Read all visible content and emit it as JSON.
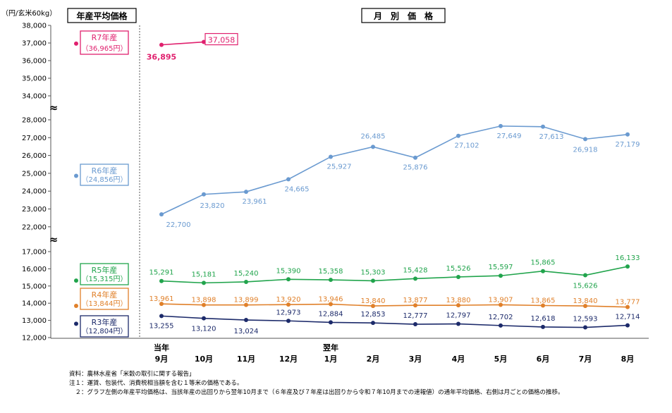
{
  "header": {
    "unit": "（円/玄米60kg）",
    "left_title": "年産平均価格",
    "right_title": "月　別　価　格"
  },
  "colors": {
    "R7": "#e0206e",
    "R6": "#6a9ad0",
    "R5": "#21a44c",
    "R4": "#e0802a",
    "R3": "#1c2a6a"
  },
  "chart_data": {
    "type": "line",
    "title": "月別価格",
    "ylabel": "円/玄米60kg",
    "categories": [
      "9月",
      "10月",
      "11月",
      "12月",
      "1月",
      "2月",
      "3月",
      "4月",
      "5月",
      "6月",
      "7月",
      "8月"
    ],
    "x_prefixes": {
      "first": "当年",
      "fifth": "翌年"
    },
    "yticks_top": [
      "38,000",
      "37,000",
      "36,000",
      "35,000",
      "34,000"
    ],
    "yticks_mid": [
      "28,000",
      "27,000",
      "26,000",
      "25,000",
      "24,000",
      "23,000",
      "22,000"
    ],
    "yticks_low": [
      "17,000",
      "16,000",
      "15,000",
      "14,000",
      "13,000",
      "12,000"
    ],
    "break_symbol": "≈",
    "series": [
      {
        "key": "R7",
        "name": "R7年産",
        "avg": 36965,
        "avg_label": "（36,965円）",
        "values": [
          36895,
          37058,
          null,
          null,
          null,
          null,
          null,
          null,
          null,
          null,
          null,
          null
        ],
        "labels": [
          "36,895",
          "37,058"
        ]
      },
      {
        "key": "R6",
        "name": "R6年産",
        "avg": 24856,
        "avg_label": "（24,856円）",
        "values": [
          22700,
          23820,
          23961,
          24665,
          25927,
          26485,
          25876,
          27102,
          27649,
          27613,
          26918,
          27179
        ],
        "labels": [
          "22,700",
          "23,820",
          "23,961",
          "24,665",
          "25,927",
          "26,485",
          "25,876",
          "27,102",
          "27,649",
          "27,613",
          "26,918",
          "27,179"
        ]
      },
      {
        "key": "R5",
        "name": "R5年産",
        "avg": 15315,
        "avg_label": "（15,315円）",
        "values": [
          15291,
          15181,
          15240,
          15390,
          15358,
          15303,
          15428,
          15526,
          15597,
          15865,
          15626,
          16133
        ],
        "labels": [
          "15,291",
          "15,181",
          "15,240",
          "15,390",
          "15,358",
          "15,303",
          "15,428",
          "15,526",
          "15,597",
          "15,865",
          "15,626",
          "16,133"
        ]
      },
      {
        "key": "R4",
        "name": "R4年産",
        "avg": 13844,
        "avg_label": "（13,844円）",
        "values": [
          13961,
          13898,
          13899,
          13920,
          13946,
          13840,
          13877,
          13880,
          13907,
          13865,
          13840,
          13777
        ],
        "labels": [
          "13,961",
          "13,898",
          "13,899",
          "13,920",
          "13,946",
          "13,840",
          "13,877",
          "13,880",
          "13,907",
          "13,865",
          "13,840",
          "13,777"
        ]
      },
      {
        "key": "R3",
        "name": "R3年産",
        "avg": 12804,
        "avg_label": "（12,804円）",
        "values": [
          13255,
          13120,
          13024,
          12973,
          12884,
          12853,
          12777,
          12797,
          12702,
          12618,
          12593,
          12714
        ],
        "labels": [
          "13,255",
          "13,120",
          "13,024",
          "12,973",
          "12,884",
          "12,853",
          "12,777",
          "12,797",
          "12,702",
          "12,618",
          "12,593",
          "12,714"
        ]
      }
    ]
  },
  "notes": [
    "資料：農林水産省「米穀の取引に関する報告」",
    "注１：運賃、包装代、消費税相当額を含む１等米の価格である。",
    "　２：グラフ左側の年産平均価格は、当該年産の出回りから翌年10月まで（６年産及び７年産は出回りから令和７年10月までの速報値）の通年平均価格、右側は月ごとの価格の推移。"
  ]
}
